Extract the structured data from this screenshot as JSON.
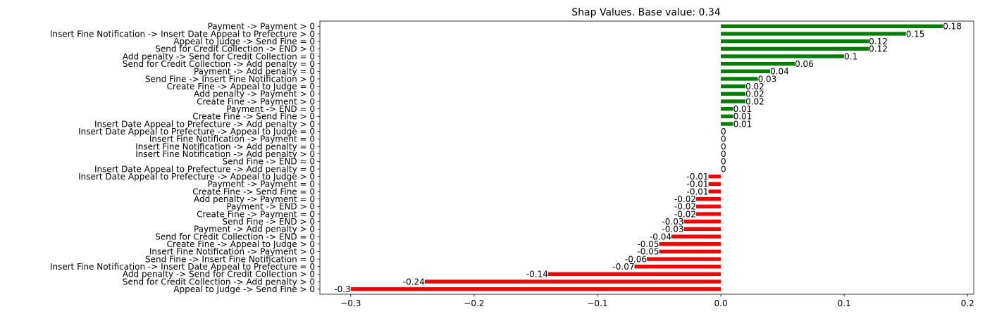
{
  "chart_data": {
    "type": "bar",
    "orientation": "horizontal",
    "title": "Shap Values. Base value: 0.34",
    "xlabel": "",
    "ylabel": "",
    "xlim": [
      -0.325,
      0.205
    ],
    "xticks": [
      {
        "value": -0.3,
        "label": "−0.3"
      },
      {
        "value": -0.2,
        "label": "−0.2"
      },
      {
        "value": -0.1,
        "label": "−0.1"
      },
      {
        "value": 0.0,
        "label": "0.0"
      },
      {
        "value": 0.1,
        "label": "0.1"
      },
      {
        "value": 0.2,
        "label": "0.2"
      }
    ],
    "grid": false,
    "legend": "none",
    "colors": {
      "positive": "#008000",
      "negative": "#ff0000"
    },
    "categories": [
      "Payment -> Payment > 0",
      "Insert Fine Notification -> Insert Date Appeal to Prefecture > 0",
      "Appeal to Judge -> Send Fine = 0",
      "Send for Credit Collection -> END > 0",
      "Add penalty -> Send for Credit Collection = 0",
      "Send for Credit Collection -> Add penalty = 0",
      "Payment -> Add penalty = 0",
      "Send Fine -> Insert Fine Notification > 0",
      "Create Fine -> Appeal to Judge = 0",
      "Add penalty -> Payment > 0",
      "Create Fine -> Payment > 0",
      "Payment -> END = 0",
      "Create Fine -> Send Fine > 0",
      "Insert Date Appeal to Prefecture -> Add penalty > 0",
      "Insert Date Appeal to Prefecture -> Appeal to Judge = 0",
      "Insert Fine Notification -> Payment = 0",
      "Insert Fine Notification -> Add penalty = 0",
      "Insert Fine Notification -> Add penalty > 0",
      "Send Fine -> END = 0",
      "Insert Date Appeal to Prefecture -> Add penalty = 0",
      "Insert Date Appeal to Prefecture -> Appeal to Judge > 0",
      "Payment -> Payment = 0",
      "Create Fine -> Send Fine = 0",
      "Add penalty -> Payment = 0",
      "Payment -> END > 0",
      "Create Fine -> Payment = 0",
      "Send Fine -> END > 0",
      "Payment -> Add penalty > 0",
      "Send for Credit Collection -> END = 0",
      "Create Fine -> Appeal to Judge > 0",
      "Insert Fine Notification -> Payment > 0",
      "Send Fine -> Insert Fine Notification = 0",
      "Insert Fine Notification -> Insert Date Appeal to Prefecture = 0",
      "Add penalty -> Send for Credit Collection > 0",
      "Send for Credit Collection -> Add penalty > 0",
      "Appeal to Judge -> Send Fine > 0"
    ],
    "values": [
      0.18,
      0.15,
      0.12,
      0.12,
      0.1,
      0.06,
      0.04,
      0.03,
      0.02,
      0.02,
      0.02,
      0.01,
      0.01,
      0.01,
      0,
      0,
      0,
      0,
      0,
      0,
      -0.01,
      -0.01,
      -0.01,
      -0.02,
      -0.02,
      -0.02,
      -0.03,
      -0.03,
      -0.04,
      -0.05,
      -0.05,
      -0.06,
      -0.07,
      -0.14,
      -0.24,
      -0.3
    ],
    "data_labels": [
      "0.18",
      "0.15",
      "0.12",
      "0.12",
      "0.1",
      "0.06",
      "0.04",
      "0.03",
      "0.02",
      "0.02",
      "0.02",
      "0.01",
      "0.01",
      "0.01",
      "0",
      "0",
      "0",
      "0",
      "0",
      "0",
      "-0.01",
      "-0.01",
      "-0.01",
      "-0.02",
      "-0.02",
      "-0.02",
      "-0.03",
      "-0.03",
      "-0.04",
      "-0.05",
      "-0.05",
      "-0.06",
      "-0.07",
      "-0.14",
      "-0.24",
      "-0.3"
    ]
  }
}
